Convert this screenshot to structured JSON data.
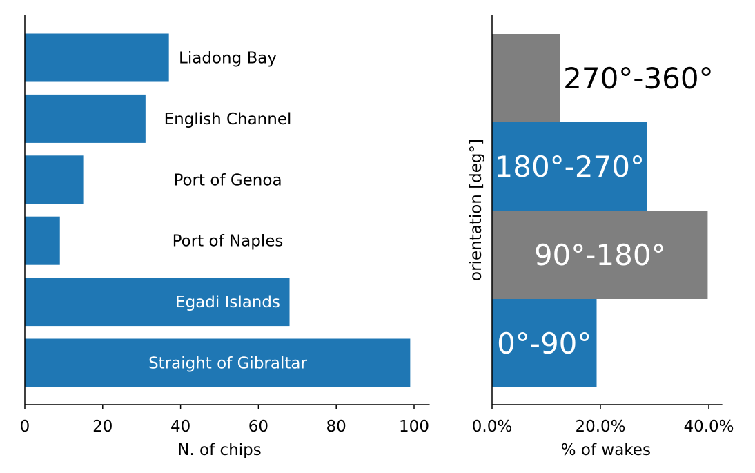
{
  "chart_data": [
    {
      "type": "bar",
      "orientation": "horizontal",
      "categories": [
        "Straight of Gibraltar",
        "Egadi Islands",
        "Port of Naples",
        "Port of Genoa",
        "English Channel",
        "Liadong Bay"
      ],
      "values": [
        99,
        68,
        9,
        15,
        31,
        37
      ],
      "xlabel": "N. of chips",
      "ylabel": "",
      "xlim": [
        0,
        104
      ],
      "xticks": [
        0,
        20,
        40,
        60,
        80,
        100
      ],
      "xtick_labels": [
        "0",
        "20",
        "40",
        "60",
        "80",
        "100"
      ],
      "bar_color": "#1f77b4",
      "label_colors": [
        "#ffffff",
        "#ffffff",
        "#000000",
        "#000000",
        "#000000",
        "#000000"
      ],
      "grid": false
    },
    {
      "type": "bar",
      "orientation": "horizontal",
      "categories": [
        "0°-90°",
        "90°-180°",
        "180°-270°",
        "270°-360°"
      ],
      "values": [
        19.3,
        39.8,
        28.6,
        12.5
      ],
      "xlabel": "% of wakes",
      "ylabel": "orientation [deg°]",
      "xlim": [
        0,
        42.5
      ],
      "xticks": [
        0,
        20,
        40
      ],
      "xtick_labels": [
        "0.0%",
        "20.0%",
        "40.0%"
      ],
      "bar_colors": [
        "#1f77b4",
        "#7f7f7f",
        "#1f77b4",
        "#7f7f7f"
      ],
      "label_colors": [
        "#ffffff",
        "#ffffff",
        "#ffffff",
        "#000000"
      ],
      "grid": false
    }
  ]
}
